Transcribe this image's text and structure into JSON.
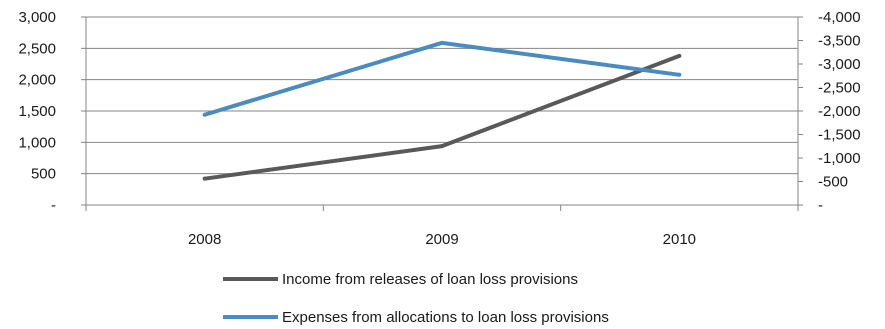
{
  "chart_data": {
    "type": "line",
    "categories": [
      "2008",
      "2009",
      "2010"
    ],
    "y_left": {
      "ticks": [
        0,
        500,
        1000,
        1500,
        2000,
        2500,
        3000
      ],
      "tick_labels": [
        "-",
        "500",
        "1,000",
        "1,500",
        "2,000",
        "2,500",
        "3,000"
      ],
      "ylim": [
        0,
        3000
      ]
    },
    "y_right": {
      "ticks": [
        0,
        -500,
        -1000,
        -1500,
        -2000,
        -2500,
        -3000,
        -3500,
        -4000
      ],
      "tick_labels": [
        "-",
        "-500",
        "-1,000",
        "-1,500",
        "-2,000",
        "-2,500",
        "-3,000",
        "-3,500",
        "-4,000"
      ],
      "ylim": [
        0,
        -4000
      ]
    },
    "grid": true,
    "legend_position": "bottom",
    "series": [
      {
        "name": "Income from releases of loan loss provisions",
        "axis": "left",
        "color": "#595959",
        "values": [
          420,
          940,
          2380
        ]
      },
      {
        "name": "Expenses from allocations to loan loss provisions",
        "axis": "right",
        "color": "#4a8bc2",
        "values": [
          -1920,
          -3450,
          -2770
        ]
      }
    ]
  }
}
